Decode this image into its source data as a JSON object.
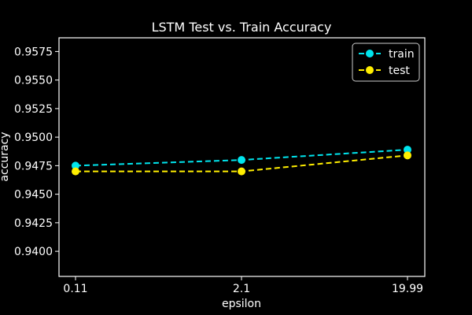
{
  "chart_data": {
    "type": "line",
    "title": "LSTM Test vs. Train Accuracy",
    "xlabel": "epsilon",
    "ylabel": "accuracy",
    "categories": [
      "0.11",
      "2.1",
      "19.99"
    ],
    "ylim": [
      0.9378,
      0.9587
    ],
    "yticks": [
      "0.9400",
      "0.9425",
      "0.9450",
      "0.9475",
      "0.9500",
      "0.9525",
      "0.9550",
      "0.9575"
    ],
    "series": [
      {
        "name": "train",
        "values": [
          0.9475,
          0.948,
          0.9489
        ],
        "color": "#00e5ee",
        "linestyle": "dashed",
        "marker": "circle"
      },
      {
        "name": "test",
        "values": [
          0.947,
          0.947,
          0.9484
        ],
        "color": "#ffee00",
        "linestyle": "dashed",
        "marker": "circle"
      }
    ],
    "grid": false,
    "legend_position": "top-right"
  }
}
